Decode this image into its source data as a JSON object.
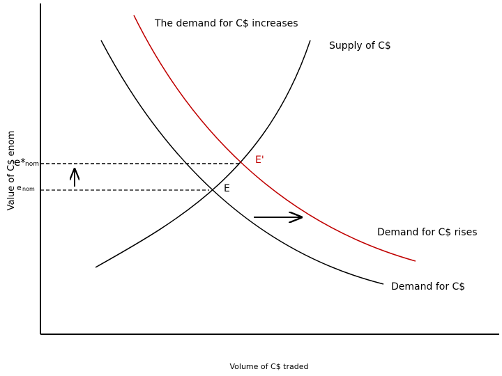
{
  "title": "The demand for C$ increases",
  "supply_label": "Supply of C$",
  "new_demand_label": "Demand for C$ rises",
  "demand_label": "Demand for C$",
  "x_axis_label": "Volume of C$ traded",
  "y_axis_label": "Value of C$ enom",
  "points": {
    "new_equilibrium": "E'",
    "equilibrium": "E"
  },
  "levels": {
    "new_rate": "e*",
    "new_rate_sub": "nom",
    "rate": "e",
    "rate_sub": "nom"
  }
}
